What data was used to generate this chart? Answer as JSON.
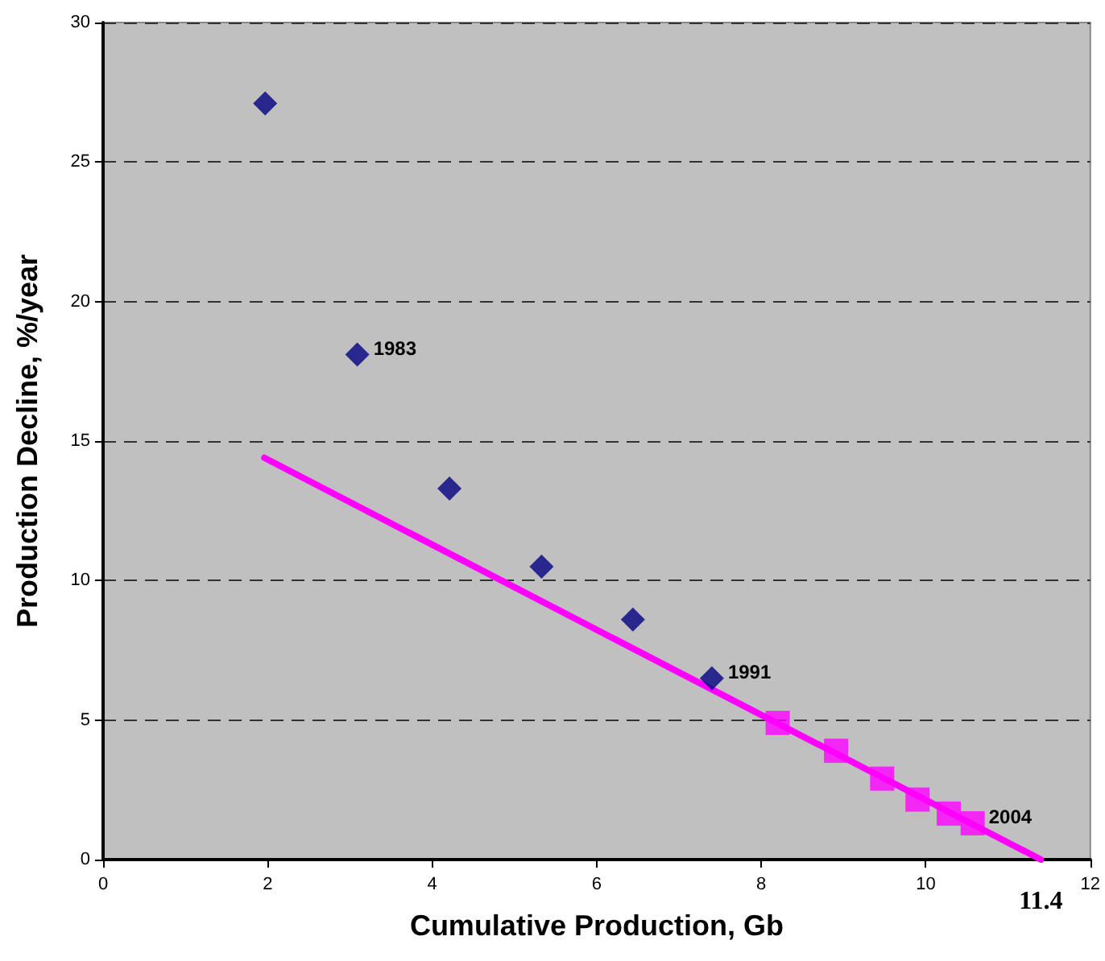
{
  "chart_data": {
    "type": "scatter",
    "xlabel": "Cumulative Production, Gb",
    "ylabel": "Production Decline, %/year",
    "xlim": [
      0,
      12
    ],
    "xticks": [
      0,
      2,
      4,
      6,
      8,
      10,
      12
    ],
    "ylim": [
      0,
      30
    ],
    "yticks": [
      0,
      5,
      10,
      15,
      20,
      25,
      30
    ],
    "grid": "y",
    "series": [
      {
        "marker": "diamond",
        "color": "#000080",
        "x": [
          1.97,
          3.09,
          4.21,
          5.33,
          6.44,
          7.4
        ],
        "values": [
          27.1,
          18.1,
          13.3,
          10.5,
          8.6,
          6.5
        ]
      },
      {
        "marker": "square",
        "color": "#ff00ff",
        "x": [
          8.2,
          8.91,
          9.47,
          9.9,
          10.28,
          10.57
        ],
        "values": [
          4.9,
          3.9,
          2.9,
          2.15,
          1.65,
          1.3
        ]
      },
      {
        "type": "line",
        "marker": "none",
        "line_style": "solid",
        "color": "#ff00ff",
        "x": [
          1.96,
          11.4
        ],
        "values": [
          14.4,
          0
        ]
      }
    ],
    "annotations": [
      {
        "text": "1983",
        "x": 3.09,
        "y": 18.1
      },
      {
        "text": "1991",
        "x": 7.4,
        "y": 6.5
      },
      {
        "text": "2004",
        "x": 10.57,
        "y": 1.3
      },
      {
        "text": "11.4",
        "x": 11.4,
        "y": 0
      }
    ]
  }
}
